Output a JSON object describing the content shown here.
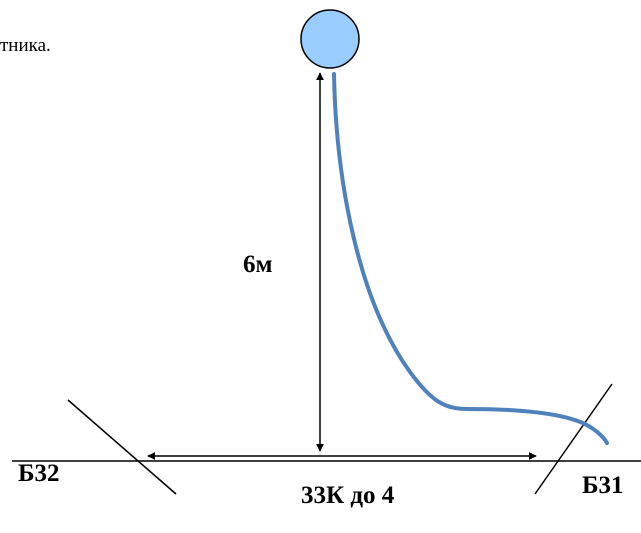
{
  "text": {
    "partial_top": "тника.",
    "height_label": "6м",
    "bz2_label": "Б32",
    "bz1_label": "Б31",
    "zone_label": "33К до 4"
  },
  "colors": {
    "ball_fill": "#99ccff",
    "ball_stroke": "#000000",
    "cable": "#4f81bd",
    "lines": "#000000",
    "background": "#ffffff"
  },
  "elements": {
    "ball": "circle",
    "cable": "curve",
    "ground": "horizontal-line",
    "boundary_left": "slanted-line",
    "boundary_right": "slanted-line",
    "height_arrow": "double-headed-vertical-arrow",
    "zone_arrow": "double-headed-horizontal-arrow"
  }
}
